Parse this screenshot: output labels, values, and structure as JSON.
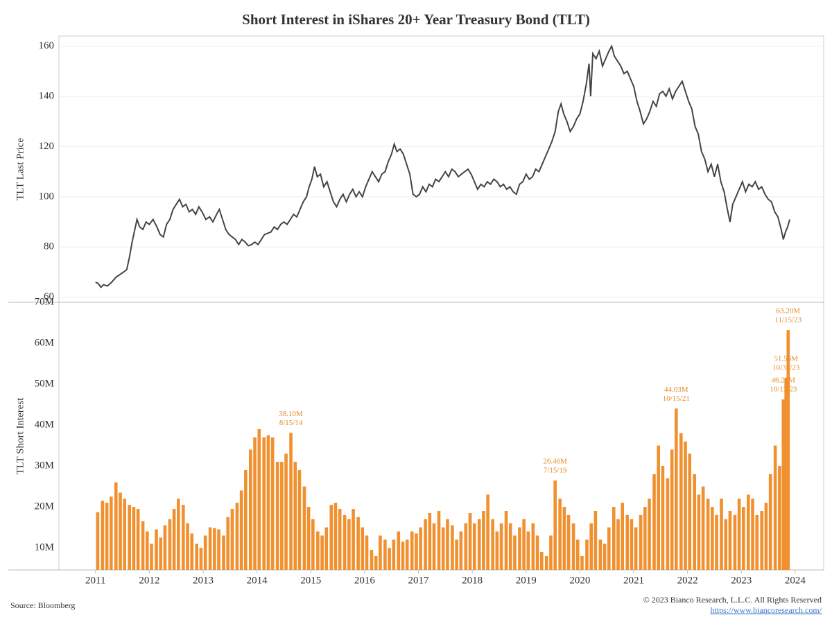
{
  "title": "Short Interest in iShares 20+ Year Treasury Bond (TLT)",
  "source": "Source: Bloomberg",
  "copyright": "© 2023 Bianco Research, L.L.C. All Rights Reserved",
  "url": "https://www.biancoresearch.com/",
  "chart_data": [
    {
      "type": "line",
      "ylabel": "TLT Last Price",
      "color": "#444444",
      "grid": true,
      "xlim": [
        2010.32,
        2024.53
      ],
      "ylim": [
        58,
        164
      ],
      "yticks": [
        60,
        80,
        100,
        120,
        140,
        160
      ],
      "x": [
        2011.0,
        2011.05,
        2011.1,
        2011.15,
        2011.22,
        2011.3,
        2011.38,
        2011.45,
        2011.52,
        2011.58,
        2011.63,
        2011.68,
        2011.72,
        2011.77,
        2011.82,
        2011.88,
        2011.94,
        2012.0,
        2012.07,
        2012.14,
        2012.2,
        2012.26,
        2012.32,
        2012.38,
        2012.44,
        2012.5,
        2012.56,
        2012.62,
        2012.68,
        2012.74,
        2012.8,
        2012.86,
        2012.92,
        2012.98,
        2013.05,
        2013.12,
        2013.18,
        2013.25,
        2013.3,
        2013.36,
        2013.42,
        2013.48,
        2013.54,
        2013.6,
        2013.66,
        2013.72,
        2013.78,
        2013.84,
        2013.9,
        2013.96,
        2014.02,
        2014.08,
        2014.14,
        2014.2,
        2014.26,
        2014.32,
        2014.38,
        2014.44,
        2014.5,
        2014.56,
        2014.62,
        2014.68,
        2014.74,
        2014.8,
        2014.86,
        2014.92,
        2014.97,
        2015.02,
        2015.07,
        2015.12,
        2015.18,
        2015.24,
        2015.3,
        2015.36,
        2015.42,
        2015.48,
        2015.54,
        2015.6,
        2015.66,
        2015.72,
        2015.78,
        2015.84,
        2015.9,
        2015.96,
        2016.02,
        2016.08,
        2016.14,
        2016.2,
        2016.26,
        2016.32,
        2016.38,
        2016.44,
        2016.5,
        2016.55,
        2016.6,
        2016.66,
        2016.72,
        2016.78,
        2016.84,
        2016.9,
        2016.96,
        2017.02,
        2017.08,
        2017.14,
        2017.2,
        2017.26,
        2017.32,
        2017.38,
        2017.44,
        2017.5,
        2017.56,
        2017.62,
        2017.68,
        2017.74,
        2017.8,
        2017.86,
        2017.92,
        2017.98,
        2018.04,
        2018.1,
        2018.16,
        2018.22,
        2018.28,
        2018.34,
        2018.4,
        2018.46,
        2018.52,
        2018.58,
        2018.64,
        2018.7,
        2018.76,
        2018.82,
        2018.88,
        2018.94,
        2019.0,
        2019.06,
        2019.12,
        2019.18,
        2019.24,
        2019.3,
        2019.36,
        2019.42,
        2019.48,
        2019.54,
        2019.6,
        2019.65,
        2019.7,
        2019.76,
        2019.82,
        2019.88,
        2019.94,
        2020.0,
        2020.06,
        2020.12,
        2020.17,
        2020.2,
        2020.24,
        2020.3,
        2020.36,
        2020.42,
        2020.48,
        2020.54,
        2020.59,
        2020.64,
        2020.7,
        2020.76,
        2020.82,
        2020.88,
        2020.94,
        2021.0,
        2021.06,
        2021.12,
        2021.18,
        2021.24,
        2021.3,
        2021.36,
        2021.42,
        2021.48,
        2021.54,
        2021.6,
        2021.66,
        2021.72,
        2021.78,
        2021.84,
        2021.9,
        2021.96,
        2022.02,
        2022.08,
        2022.14,
        2022.2,
        2022.26,
        2022.32,
        2022.38,
        2022.44,
        2022.5,
        2022.56,
        2022.62,
        2022.68,
        2022.74,
        2022.79,
        2022.84,
        2022.9,
        2022.96,
        2023.02,
        2023.08,
        2023.14,
        2023.2,
        2023.26,
        2023.32,
        2023.38,
        2023.44,
        2023.5,
        2023.56,
        2023.62,
        2023.68,
        2023.74,
        2023.78,
        2023.82,
        2023.86,
        2023.9
      ],
      "values": [
        66,
        65.5,
        64,
        65,
        64.5,
        66,
        68,
        69,
        70,
        71,
        76,
        82,
        86,
        91,
        88,
        87,
        90,
        89,
        91,
        88,
        85,
        84,
        89,
        91,
        95,
        97,
        99,
        96,
        97,
        94,
        95,
        93,
        96,
        94,
        91,
        92,
        90,
        93,
        95,
        91,
        87,
        85,
        84,
        83,
        81,
        83,
        82,
        80.5,
        81,
        82,
        81,
        83,
        85,
        85.5,
        86,
        88,
        87,
        89,
        90,
        89,
        91,
        93,
        92,
        95,
        98,
        100,
        104,
        107,
        112,
        108,
        109,
        104,
        106,
        102,
        98,
        96,
        99,
        101,
        98,
        101,
        103,
        100,
        102,
        100,
        104,
        107,
        110,
        108,
        106,
        109,
        110,
        114,
        117,
        121,
        118,
        119,
        117,
        113,
        109,
        101,
        100,
        101,
        104,
        102,
        105,
        104,
        107,
        106,
        108,
        110,
        108,
        111,
        110,
        108,
        109,
        110,
        111,
        109,
        106,
        103,
        105,
        104,
        106,
        105,
        107,
        106,
        104,
        105,
        103,
        104,
        102,
        101,
        105,
        106,
        109,
        107,
        108,
        111,
        110,
        113,
        116,
        119,
        122,
        126,
        134,
        137,
        133,
        130,
        126,
        128,
        131,
        133,
        138,
        145,
        153,
        140,
        157,
        155,
        158,
        152,
        155,
        158,
        160,
        156,
        154,
        152,
        149,
        150,
        147,
        144,
        138,
        134,
        129,
        131,
        134,
        138,
        136,
        141,
        142,
        140,
        143,
        139,
        142,
        144,
        146,
        142,
        138,
        135,
        128,
        125,
        118,
        115,
        110,
        113,
        108,
        113,
        106,
        102,
        95,
        90,
        97,
        100,
        103,
        106,
        102,
        105,
        104,
        106,
        103,
        104,
        101,
        99,
        98,
        94,
        92,
        87,
        83,
        86,
        88,
        91
      ]
    },
    {
      "type": "bar",
      "ylabel": "TLT Short Interest",
      "color": "#f0902e",
      "xlim": [
        2010.32,
        2024.53
      ],
      "xticks": [
        2011,
        2012,
        2013,
        2014,
        2015,
        2016,
        2017,
        2018,
        2019,
        2020,
        2021,
        2022,
        2023,
        2024
      ],
      "ylim": [
        4.6,
        70
      ],
      "yticks": [
        {
          "value": 10,
          "label": "10M"
        },
        {
          "value": 20,
          "label": "20M"
        },
        {
          "value": 30,
          "label": "30M"
        },
        {
          "value": 40,
          "label": "40M"
        },
        {
          "value": 50,
          "label": "50M"
        },
        {
          "value": 60,
          "label": "60M"
        },
        {
          "value": 70,
          "label": "70M"
        }
      ],
      "x": [
        2011.04,
        2011.13,
        2011.21,
        2011.29,
        2011.38,
        2011.46,
        2011.54,
        2011.63,
        2011.71,
        2011.79,
        2011.88,
        2011.96,
        2012.04,
        2012.13,
        2012.21,
        2012.29,
        2012.38,
        2012.46,
        2012.54,
        2012.63,
        2012.71,
        2012.79,
        2012.88,
        2012.96,
        2013.04,
        2013.13,
        2013.21,
        2013.29,
        2013.38,
        2013.46,
        2013.54,
        2013.63,
        2013.71,
        2013.79,
        2013.88,
        2013.96,
        2014.04,
        2014.13,
        2014.21,
        2014.29,
        2014.38,
        2014.46,
        2014.54,
        2014.63,
        2014.71,
        2014.79,
        2014.88,
        2014.96,
        2015.04,
        2015.13,
        2015.21,
        2015.29,
        2015.38,
        2015.46,
        2015.54,
        2015.63,
        2015.71,
        2015.79,
        2015.88,
        2015.96,
        2016.04,
        2016.13,
        2016.21,
        2016.29,
        2016.38,
        2016.46,
        2016.54,
        2016.63,
        2016.71,
        2016.79,
        2016.88,
        2016.96,
        2017.04,
        2017.13,
        2017.21,
        2017.29,
        2017.38,
        2017.46,
        2017.54,
        2017.63,
        2017.71,
        2017.79,
        2017.88,
        2017.96,
        2018.04,
        2018.13,
        2018.21,
        2018.29,
        2018.38,
        2018.46,
        2018.54,
        2018.63,
        2018.71,
        2018.79,
        2018.88,
        2018.96,
        2019.04,
        2019.13,
        2019.21,
        2019.29,
        2019.38,
        2019.46,
        2019.54,
        2019.63,
        2019.71,
        2019.79,
        2019.88,
        2019.96,
        2020.04,
        2020.13,
        2020.21,
        2020.29,
        2020.38,
        2020.46,
        2020.54,
        2020.63,
        2020.71,
        2020.79,
        2020.88,
        2020.96,
        2021.04,
        2021.13,
        2021.21,
        2021.29,
        2021.38,
        2021.46,
        2021.54,
        2021.63,
        2021.71,
        2021.79,
        2021.88,
        2021.96,
        2022.04,
        2022.13,
        2022.21,
        2022.29,
        2022.38,
        2022.46,
        2022.54,
        2022.63,
        2022.71,
        2022.79,
        2022.88,
        2022.96,
        2023.04,
        2023.13,
        2023.21,
        2023.29,
        2023.38,
        2023.46,
        2023.54,
        2023.63,
        2023.71,
        2023.78,
        2023.83,
        2023.87
      ],
      "values": [
        18.7,
        21.5,
        21,
        22.5,
        26,
        23.5,
        22,
        20.5,
        20,
        19.5,
        16.5,
        14,
        11,
        14.5,
        12.5,
        15.5,
        17,
        19.5,
        22,
        20.5,
        16,
        13.5,
        11,
        10,
        13,
        15,
        14.8,
        14.5,
        13,
        17.5,
        19.5,
        21,
        24,
        29,
        34,
        37,
        39,
        37,
        37.5,
        37,
        31,
        31,
        33,
        38.1,
        31,
        29,
        25,
        20,
        17,
        14,
        13,
        15,
        20.5,
        21,
        19.5,
        18,
        17,
        19.5,
        17.5,
        15,
        13,
        9.5,
        8,
        13,
        12,
        10,
        12,
        14,
        11.5,
        12,
        14,
        13.5,
        15,
        17,
        18.5,
        16,
        19,
        15,
        17,
        15.5,
        12,
        14,
        16,
        18.5,
        16,
        17,
        19,
        23,
        17,
        14,
        16,
        19,
        16,
        13,
        15,
        17,
        14,
        16,
        13,
        9,
        8,
        13,
        26.46,
        22,
        20,
        18,
        16,
        12,
        8,
        12,
        16,
        19,
        12,
        11,
        15,
        20,
        17,
        21,
        18,
        17,
        15,
        18,
        20,
        22,
        28,
        35,
        30,
        27,
        34,
        44.03,
        38,
        36,
        33,
        28,
        23,
        25,
        22,
        20,
        18,
        22,
        17,
        19,
        18,
        22,
        20,
        23,
        22,
        18,
        19,
        21,
        28,
        35,
        30,
        46.26,
        51.56,
        63.2
      ],
      "annotations": [
        {
          "label": "38.10M",
          "date": "8/15/14",
          "x": 2014.63,
          "value": 38.1
        },
        {
          "label": "26.46M",
          "date": "7/15/19",
          "x": 2019.54,
          "value": 26.46
        },
        {
          "label": "44.03M",
          "date": "10/15/21",
          "x": 2021.79,
          "value": 44.03
        },
        {
          "label": "46.26M",
          "date": "10/13/23",
          "x": 2023.78,
          "value": 46.26
        },
        {
          "label": "51.56M",
          "date": "10/31/23",
          "x": 2023.83,
          "value": 51.56
        },
        {
          "label": "63.20M",
          "date": "11/15/23",
          "x": 2023.87,
          "value": 63.2
        }
      ]
    }
  ]
}
